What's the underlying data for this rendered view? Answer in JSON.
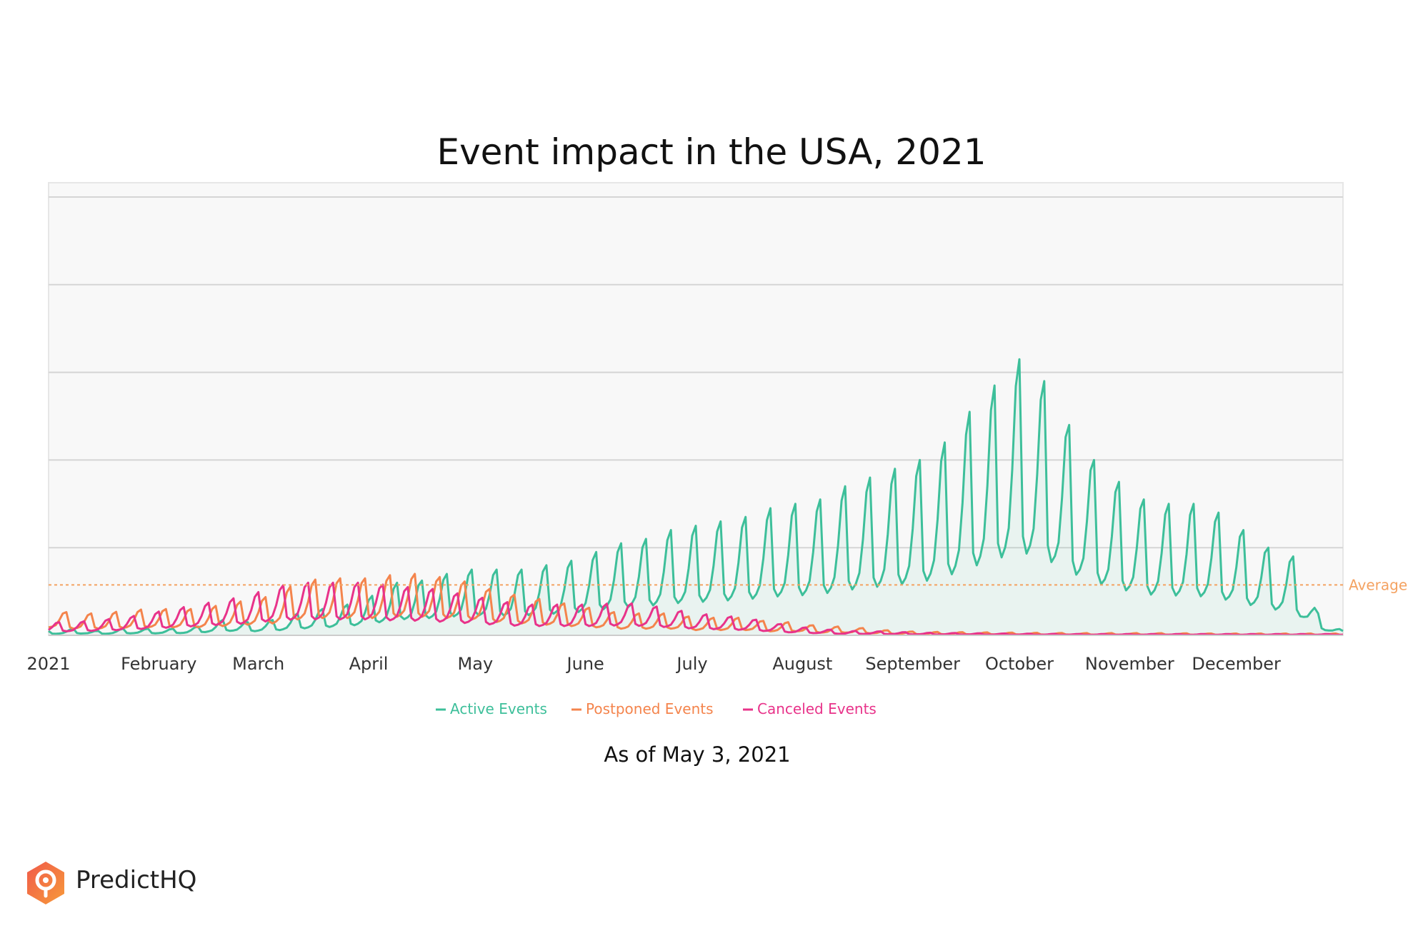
{
  "chart_data": {
    "type": "line",
    "title": "Event impact in the USA, 2021",
    "subtitle": "As of May 3, 2021",
    "xlabel": "",
    "ylabel": "",
    "ylim": [
      0,
      100
    ],
    "grid": true,
    "x_ticks": [
      "2021",
      "February",
      "March",
      "April",
      "May",
      "June",
      "July",
      "August",
      "September",
      "October",
      "November",
      "December"
    ],
    "x_tick_days": [
      0,
      31,
      59,
      90,
      120,
      151,
      181,
      212,
      243,
      273,
      304,
      334
    ],
    "average": {
      "label": "Average",
      "value": 11.5,
      "color": "#f4a261"
    },
    "legend_position": "bottom-center",
    "series": [
      {
        "name": "Active Events",
        "color": "#3dbf9a",
        "fill": true,
        "points": [
          [
            0,
            1
          ],
          [
            7,
            1.5
          ],
          [
            14,
            1
          ],
          [
            21,
            1.5
          ],
          [
            28,
            1.5
          ],
          [
            35,
            1.5
          ],
          [
            42,
            2
          ],
          [
            49,
            3.5
          ],
          [
            56,
            3
          ],
          [
            63,
            3.5
          ],
          [
            70,
            5
          ],
          [
            77,
            6
          ],
          [
            84,
            7
          ],
          [
            91,
            9
          ],
          [
            98,
            12
          ],
          [
            105,
            12.5
          ],
          [
            112,
            14
          ],
          [
            119,
            15
          ],
          [
            126,
            15
          ],
          [
            133,
            15
          ],
          [
            140,
            16
          ],
          [
            147,
            17
          ],
          [
            154,
            19
          ],
          [
            161,
            21
          ],
          [
            168,
            22
          ],
          [
            175,
            24
          ],
          [
            182,
            25
          ],
          [
            189,
            26
          ],
          [
            196,
            27
          ],
          [
            203,
            29
          ],
          [
            210,
            30
          ],
          [
            217,
            31
          ],
          [
            224,
            34
          ],
          [
            231,
            36
          ],
          [
            238,
            38
          ],
          [
            245,
            40
          ],
          [
            252,
            44
          ],
          [
            259,
            51
          ],
          [
            266,
            57
          ],
          [
            273,
            63
          ],
          [
            280,
            58
          ],
          [
            287,
            48
          ],
          [
            294,
            40
          ],
          [
            301,
            35
          ],
          [
            308,
            31
          ],
          [
            315,
            30
          ],
          [
            322,
            30
          ],
          [
            329,
            28
          ],
          [
            336,
            24
          ],
          [
            343,
            20
          ],
          [
            350,
            18
          ],
          [
            357,
            5
          ],
          [
            364,
            1
          ]
        ]
      },
      {
        "name": "Postponed Events",
        "color": "#f4844c",
        "fill": false,
        "points": [
          [
            0,
            6
          ],
          [
            7,
            5
          ],
          [
            14,
            5
          ],
          [
            21,
            5.5
          ],
          [
            28,
            6
          ],
          [
            35,
            6
          ],
          [
            42,
            6
          ],
          [
            49,
            7
          ],
          [
            56,
            8
          ],
          [
            63,
            9
          ],
          [
            70,
            12
          ],
          [
            77,
            13
          ],
          [
            84,
            13
          ],
          [
            91,
            13
          ],
          [
            98,
            14
          ],
          [
            105,
            14
          ],
          [
            112,
            13
          ],
          [
            119,
            12
          ],
          [
            126,
            10
          ],
          [
            133,
            9
          ],
          [
            140,
            8
          ],
          [
            147,
            7
          ],
          [
            154,
            6
          ],
          [
            161,
            5
          ],
          [
            168,
            5
          ],
          [
            175,
            5
          ],
          [
            182,
            4
          ],
          [
            189,
            4
          ],
          [
            196,
            4
          ],
          [
            203,
            3
          ],
          [
            210,
            3
          ],
          [
            217,
            2
          ],
          [
            224,
            2
          ],
          [
            231,
            1.5
          ],
          [
            238,
            1
          ],
          [
            245,
            0.8
          ],
          [
            259,
            0.7
          ],
          [
            273,
            0.6
          ],
          [
            290,
            0.5
          ],
          [
            310,
            0.5
          ],
          [
            330,
            0.4
          ],
          [
            350,
            0.4
          ],
          [
            364,
            0.4
          ]
        ]
      },
      {
        "name": "Canceled Events",
        "color": "#e8338a",
        "fill": false,
        "points": [
          [
            0,
            3
          ],
          [
            7,
            3
          ],
          [
            14,
            3.5
          ],
          [
            21,
            4
          ],
          [
            28,
            5
          ],
          [
            35,
            6
          ],
          [
            42,
            7
          ],
          [
            49,
            8
          ],
          [
            56,
            9
          ],
          [
            63,
            11
          ],
          [
            70,
            12
          ],
          [
            77,
            12
          ],
          [
            84,
            12
          ],
          [
            91,
            12
          ],
          [
            98,
            11
          ],
          [
            105,
            11
          ],
          [
            112,
            10
          ],
          [
            119,
            9
          ],
          [
            126,
            8
          ],
          [
            133,
            7
          ],
          [
            140,
            7
          ],
          [
            147,
            7
          ],
          [
            154,
            7
          ],
          [
            161,
            7.5
          ],
          [
            168,
            7
          ],
          [
            175,
            6
          ],
          [
            182,
            5
          ],
          [
            189,
            4.5
          ],
          [
            196,
            4
          ],
          [
            203,
            3
          ],
          [
            210,
            2
          ],
          [
            217,
            1.5
          ],
          [
            224,
            1
          ],
          [
            231,
            1
          ],
          [
            238,
            0.8
          ],
          [
            245,
            0.6
          ],
          [
            259,
            0.5
          ],
          [
            273,
            0.4
          ],
          [
            290,
            0.3
          ],
          [
            310,
            0.3
          ],
          [
            330,
            0.3
          ],
          [
            350,
            0.3
          ],
          [
            364,
            0.3
          ]
        ]
      }
    ]
  },
  "brand": {
    "name": "PredictHQ",
    "logo_colors": [
      "#f05a4a",
      "#f79a3a"
    ]
  }
}
